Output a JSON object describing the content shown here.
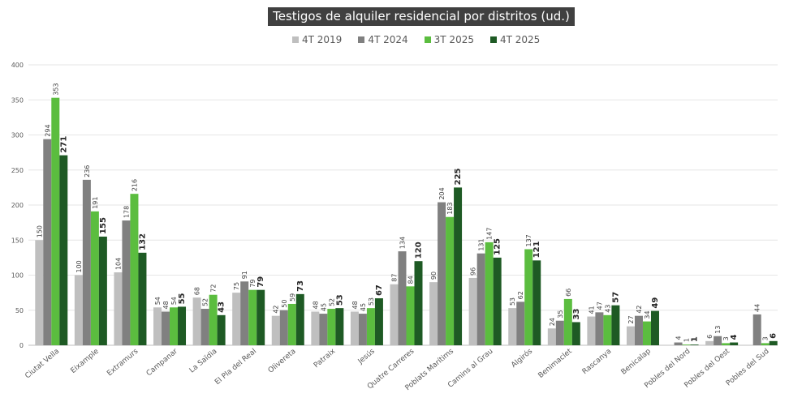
{
  "chart_data": {
    "type": "bar",
    "title": "Testigos de alquiler residencial por distritos (ud.)",
    "categories": [
      "Ciutat Vella",
      "Eixample",
      "Extramurs",
      "Campanar",
      "La Saïdia",
      "El Pla del Real",
      "Olivereta",
      "Patraix",
      "Jesús",
      "Quatre Carreres",
      "Poblats Marítims",
      "Camins al Grau",
      "Algirós",
      "Benimaclet",
      "Rascanya",
      "Benicalap",
      "Pobles del Nord",
      "Pobles del Oest",
      "Pobles del Sud"
    ],
    "series": [
      {
        "name": "4T 2019",
        "color": "#bfbfbf",
        "values": [
          150,
          100,
          104,
          54,
          68,
          75,
          42,
          48,
          48,
          87,
          90,
          96,
          53,
          24,
          41,
          27,
          0,
          6,
          0
        ]
      },
      {
        "name": "4T 2024",
        "color": "#808080",
        "values": [
          294,
          236,
          178,
          48,
          52,
          91,
          50,
          45,
          45,
          134,
          204,
          131,
          62,
          35,
          47,
          42,
          4,
          13,
          44
        ]
      },
      {
        "name": "3T 2025",
        "color": "#5bbd3f",
        "values": [
          353,
          191,
          216,
          54,
          72,
          79,
          59,
          52,
          53,
          84,
          183,
          147,
          137,
          66,
          43,
          34,
          1,
          3,
          3
        ]
      },
      {
        "name": "4T 2025",
        "color": "#1e5a24",
        "values": [
          271,
          155,
          132,
          55,
          43,
          79,
          73,
          53,
          67,
          120,
          225,
          125,
          121,
          33,
          57,
          49,
          1,
          4,
          6
        ]
      }
    ],
    "value_labels": [
      [
        "150",
        "100",
        "104",
        "54",
        "68",
        "75",
        "42",
        "48",
        "48",
        "87",
        "90",
        "96",
        "53",
        "24",
        "41",
        "27",
        "",
        "6",
        ""
      ],
      [
        "294",
        "236",
        "178",
        "48",
        "52",
        "91",
        "50",
        "45",
        "45",
        "134",
        "204",
        "131",
        "62",
        "35",
        "47",
        "42",
        "4",
        "13",
        "44"
      ],
      [
        "353",
        "191",
        "216",
        "54",
        "72",
        "79",
        "59",
        "52",
        "53",
        "84",
        "183",
        "147",
        "137",
        "66",
        "43",
        "34",
        "1",
        "3",
        "3"
      ],
      [
        "271",
        "155",
        "132",
        "55",
        "43",
        "79",
        "73",
        "53",
        "67",
        "120",
        "225",
        "125",
        "121",
        "33",
        "57",
        "49",
        "1",
        "4",
        "6"
      ]
    ],
    "ylim": [
      0,
      400
    ],
    "yticks": [
      0,
      50,
      100,
      150,
      200,
      250,
      300,
      350,
      400
    ],
    "grid": true,
    "legend_position": "top"
  }
}
